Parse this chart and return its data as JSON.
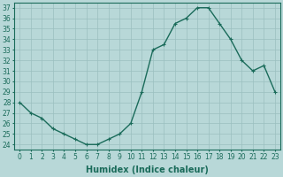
{
  "xlabel": "Humidex (Indice chaleur)",
  "ylabel": "",
  "x_values": [
    0,
    1,
    2,
    3,
    4,
    5,
    6,
    7,
    8,
    9,
    10,
    11,
    12,
    13,
    14,
    15,
    16,
    17,
    18,
    19,
    20,
    21,
    22,
    23
  ],
  "y_values": [
    28,
    27,
    26.5,
    25.5,
    25,
    24.5,
    24,
    24,
    24.5,
    25,
    26,
    29,
    33,
    33.5,
    35.5,
    36,
    37,
    37,
    35.5,
    34,
    32,
    31,
    31.5,
    29
  ],
  "line_color": "#1a6b5a",
  "marker_color": "#1a6b5a",
  "bg_color": "#b8d8d8",
  "plot_bg_color": "#b8d8d8",
  "grid_color": "#9abfbf",
  "ylim_min": 23.5,
  "ylim_max": 37.5,
  "yticks": [
    24,
    25,
    26,
    27,
    28,
    29,
    30,
    31,
    32,
    33,
    34,
    35,
    36,
    37
  ],
  "xticks": [
    0,
    1,
    2,
    3,
    4,
    5,
    6,
    7,
    8,
    9,
    10,
    11,
    12,
    13,
    14,
    15,
    16,
    17,
    18,
    19,
    20,
    21,
    22,
    23
  ],
  "xlabel_fontsize": 7,
  "tick_fontsize": 5.5,
  "marker_size": 2.5,
  "line_width": 1.0
}
